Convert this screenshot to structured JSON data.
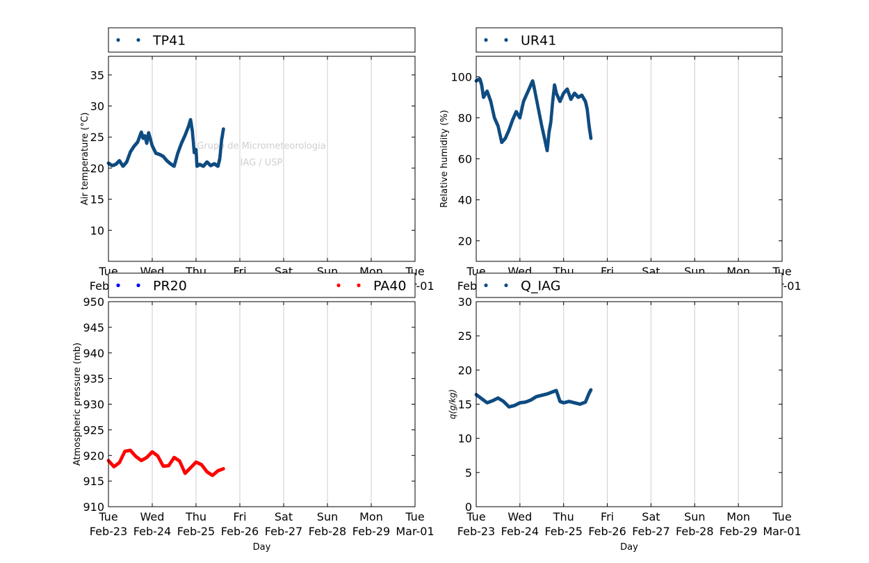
{
  "x_tick_days": [
    "Tue",
    "Wed",
    "Thu",
    "Fri",
    "Sat",
    "Sun",
    "Mon",
    "Tue"
  ],
  "x_tick_dates": [
    "Feb-23",
    "Feb-24",
    "Feb-25",
    "Feb-26",
    "Feb-27",
    "Feb-28",
    "Feb-29",
    "Mar-01"
  ],
  "watermark": [
    "Grupo de Micrometeorologia",
    "IAG / USP"
  ],
  "colors": {
    "navy_series": "#0f4c81",
    "blue_series": "#0000ff",
    "red_series": "#ff0000",
    "grid": "#cccccc"
  },
  "chart_data": [
    {
      "type": "scatter",
      "xlabel": "",
      "ylabel": "Air temperature (°C)",
      "xlim": [
        "2016-02-23",
        "2016-03-01"
      ],
      "ylim": [
        5,
        38
      ],
      "yticks": [
        10,
        15,
        20,
        25,
        30,
        35
      ],
      "grid": "x-major",
      "legend_placement": "above",
      "series": [
        {
          "name": "TP41",
          "color": "#0f4c81",
          "points": [
            [
              "2016-02-23 00:00",
              20.8
            ],
            [
              "2016-02-23 02:00",
              20.4
            ],
            [
              "2016-02-23 04:00",
              20.6
            ],
            [
              "2016-02-23 06:00",
              21.2
            ],
            [
              "2016-02-23 08:00",
              20.3
            ],
            [
              "2016-02-23 10:00",
              21.0
            ],
            [
              "2016-02-23 12:00",
              22.6
            ],
            [
              "2016-02-23 14:00",
              23.5
            ],
            [
              "2016-02-23 16:00",
              24.2
            ],
            [
              "2016-02-23 18:00",
              25.8
            ],
            [
              "2016-02-23 19:00",
              24.8
            ],
            [
              "2016-02-23 20:00",
              25.2
            ],
            [
              "2016-02-23 21:00",
              24.0
            ],
            [
              "2016-02-23 22:00",
              25.7
            ],
            [
              "2016-02-24 00:00",
              23.6
            ],
            [
              "2016-02-24 02:00",
              22.4
            ],
            [
              "2016-02-24 04:00",
              22.2
            ],
            [
              "2016-02-24 06:00",
              21.9
            ],
            [
              "2016-02-24 08:00",
              21.2
            ],
            [
              "2016-02-24 10:00",
              20.7
            ],
            [
              "2016-02-24 12:00",
              20.3
            ],
            [
              "2016-02-24 14:00",
              22.4
            ],
            [
              "2016-02-24 16:00",
              24.0
            ],
            [
              "2016-02-24 18:00",
              25.3
            ],
            [
              "2016-02-24 20:00",
              26.8
            ],
            [
              "2016-02-24 21:00",
              27.8
            ],
            [
              "2016-02-24 22:00",
              25.9
            ],
            [
              "2016-02-24 23:00",
              22.5
            ],
            [
              "2016-02-25 00:00",
              23.0
            ],
            [
              "2016-02-25 00:30",
              20.3
            ],
            [
              "2016-02-25 02:00",
              20.6
            ],
            [
              "2016-02-25 04:00",
              20.3
            ],
            [
              "2016-02-25 06:00",
              21.0
            ],
            [
              "2016-02-25 08:00",
              20.4
            ],
            [
              "2016-02-25 10:00",
              20.7
            ],
            [
              "2016-02-25 12:00",
              20.3
            ],
            [
              "2016-02-25 13:00",
              21.5
            ],
            [
              "2016-02-25 14:00",
              24.5
            ],
            [
              "2016-02-25 15:00",
              26.3
            ]
          ]
        }
      ]
    },
    {
      "type": "scatter",
      "xlabel": "",
      "ylabel": "Relative humidity (%)",
      "xlim": [
        "2016-02-23",
        "2016-03-01"
      ],
      "ylim": [
        10,
        110
      ],
      "yticks": [
        20,
        40,
        60,
        80,
        100
      ],
      "grid": "x-major",
      "legend_placement": "above",
      "series": [
        {
          "name": "UR41",
          "color": "#0f4c81",
          "points": [
            [
              "2016-02-23 00:00",
              98
            ],
            [
              "2016-02-23 02:00",
              99
            ],
            [
              "2016-02-23 03:00",
              96
            ],
            [
              "2016-02-23 04:00",
              90
            ],
            [
              "2016-02-23 06:00",
              93
            ],
            [
              "2016-02-23 08:00",
              88
            ],
            [
              "2016-02-23 10:00",
              80
            ],
            [
              "2016-02-23 12:00",
              76
            ],
            [
              "2016-02-23 14:00",
              68
            ],
            [
              "2016-02-23 16:00",
              70
            ],
            [
              "2016-02-23 18:00",
              74
            ],
            [
              "2016-02-23 20:00",
              79
            ],
            [
              "2016-02-23 22:00",
              83
            ],
            [
              "2016-02-24 00:00",
              80
            ],
            [
              "2016-02-24 02:00",
              88
            ],
            [
              "2016-02-24 04:00",
              92
            ],
            [
              "2016-02-24 06:00",
              96
            ],
            [
              "2016-02-24 07:00",
              98
            ],
            [
              "2016-02-24 08:00",
              94
            ],
            [
              "2016-02-24 10:00",
              85
            ],
            [
              "2016-02-24 12:00",
              76
            ],
            [
              "2016-02-24 14:00",
              68
            ],
            [
              "2016-02-24 15:00",
              64
            ],
            [
              "2016-02-24 16:00",
              73
            ],
            [
              "2016-02-24 17:00",
              78
            ],
            [
              "2016-02-24 18:00",
              88
            ],
            [
              "2016-02-24 19:00",
              96
            ],
            [
              "2016-02-24 20:00",
              92
            ],
            [
              "2016-02-24 22:00",
              88
            ],
            [
              "2016-02-25 00:00",
              92
            ],
            [
              "2016-02-25 02:00",
              94
            ],
            [
              "2016-02-25 04:00",
              89
            ],
            [
              "2016-02-25 06:00",
              92
            ],
            [
              "2016-02-25 08:00",
              90
            ],
            [
              "2016-02-25 10:00",
              91
            ],
            [
              "2016-02-25 12:00",
              88
            ],
            [
              "2016-02-25 13:00",
              84
            ],
            [
              "2016-02-25 14:00",
              76
            ],
            [
              "2016-02-25 15:00",
              70
            ]
          ]
        }
      ]
    },
    {
      "type": "scatter",
      "xlabel": "Day",
      "ylabel": "Atmospheric pressure (mb)",
      "xlim": [
        "2016-02-23",
        "2016-03-01"
      ],
      "ylim": [
        910,
        950
      ],
      "yticks": [
        910,
        915,
        920,
        925,
        930,
        935,
        940,
        945,
        950
      ],
      "grid": "x-major",
      "legend_placement": "above",
      "series": [
        {
          "name": "PR20",
          "color": "#0000ff",
          "points": []
        },
        {
          "name": "PA40",
          "color": "#ff0000",
          "points": [
            [
              "2016-02-23 00:00",
              919.0
            ],
            [
              "2016-02-23 03:00",
              917.8
            ],
            [
              "2016-02-23 06:00",
              918.6
            ],
            [
              "2016-02-23 09:00",
              920.8
            ],
            [
              "2016-02-23 12:00",
              921.0
            ],
            [
              "2016-02-23 15:00",
              919.8
            ],
            [
              "2016-02-23 18:00",
              919.0
            ],
            [
              "2016-02-23 21:00",
              919.6
            ],
            [
              "2016-02-24 00:00",
              920.7
            ],
            [
              "2016-02-24 03:00",
              919.9
            ],
            [
              "2016-02-24 06:00",
              917.9
            ],
            [
              "2016-02-24 09:00",
              918.0
            ],
            [
              "2016-02-24 12:00",
              919.6
            ],
            [
              "2016-02-24 15:00",
              918.9
            ],
            [
              "2016-02-24 18:00",
              916.5
            ],
            [
              "2016-02-24 21:00",
              917.6
            ],
            [
              "2016-02-25 00:00",
              918.7
            ],
            [
              "2016-02-25 03:00",
              918.2
            ],
            [
              "2016-02-25 06:00",
              916.8
            ],
            [
              "2016-02-25 09:00",
              916.1
            ],
            [
              "2016-02-25 12:00",
              917.0
            ],
            [
              "2016-02-25 15:00",
              917.4
            ]
          ]
        }
      ]
    },
    {
      "type": "scatter",
      "xlabel": "Day",
      "ylabel": "q(g/kg)",
      "xlim": [
        "2016-02-23",
        "2016-03-01"
      ],
      "ylim": [
        0,
        30
      ],
      "yticks": [
        0,
        5,
        10,
        15,
        20,
        25,
        30
      ],
      "grid": "x-major",
      "legend_placement": "above",
      "series": [
        {
          "name": "Q_IAG",
          "color": "#0f4c81",
          "points": [
            [
              "2016-02-23 00:00",
              16.4
            ],
            [
              "2016-02-23 03:00",
              15.8
            ],
            [
              "2016-02-23 06:00",
              15.2
            ],
            [
              "2016-02-23 09:00",
              15.5
            ],
            [
              "2016-02-23 12:00",
              15.9
            ],
            [
              "2016-02-23 15:00",
              15.4
            ],
            [
              "2016-02-23 18:00",
              14.6
            ],
            [
              "2016-02-23 21:00",
              14.8
            ],
            [
              "2016-02-24 00:00",
              15.2
            ],
            [
              "2016-02-24 03:00",
              15.3
            ],
            [
              "2016-02-24 06:00",
              15.6
            ],
            [
              "2016-02-24 09:00",
              16.1
            ],
            [
              "2016-02-24 12:00",
              16.3
            ],
            [
              "2016-02-24 15:00",
              16.5
            ],
            [
              "2016-02-24 18:00",
              16.8
            ],
            [
              "2016-02-24 20:00",
              17.0
            ],
            [
              "2016-02-24 22:00",
              15.4
            ],
            [
              "2016-02-25 00:00",
              15.2
            ],
            [
              "2016-02-25 03:00",
              15.4
            ],
            [
              "2016-02-25 06:00",
              15.2
            ],
            [
              "2016-02-25 09:00",
              15.0
            ],
            [
              "2016-02-25 12:00",
              15.3
            ],
            [
              "2016-02-25 14:00",
              16.6
            ],
            [
              "2016-02-25 15:00",
              17.1
            ]
          ]
        }
      ]
    }
  ]
}
